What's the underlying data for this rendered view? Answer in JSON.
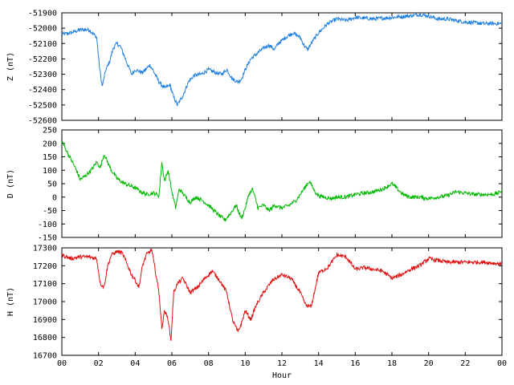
{
  "chart_data": [
    {
      "type": "line",
      "ylabel": "Z (nT)",
      "ylim": [
        -52600,
        -51900
      ],
      "yticks": [
        -51900,
        -52000,
        -52100,
        -52200,
        -52300,
        -52400,
        -52500,
        -52600
      ],
      "color": "#1f7fe0",
      "series": [
        {
          "x": [
            0,
            0.5,
            1,
            1.5,
            1.9,
            2.05,
            2.2,
            2.4,
            2.6,
            2.8,
            3.0,
            3.2,
            3.5,
            3.8,
            4.0,
            4.4,
            4.8,
            5.0,
            5.3,
            5.6,
            5.9,
            6.1,
            6.3,
            6.6,
            6.9,
            7.2,
            7.6,
            8.0,
            8.4,
            8.7,
            9.0,
            9.3,
            9.6,
            9.8,
            10.0,
            10.3,
            10.6,
            11.0,
            11.3,
            11.6,
            11.8,
            12.2,
            12.6,
            13.0,
            13.2,
            13.4,
            13.7,
            14.0,
            14.5,
            15.0,
            15.5,
            16.0,
            17.0,
            18.0,
            19.0,
            19.5,
            20.0,
            20.5,
            21.0,
            22.0,
            23.0,
            24.0
          ],
          "y": [
            -52040,
            -52030,
            -52010,
            -52010,
            -52060,
            -52250,
            -52380,
            -52270,
            -52220,
            -52130,
            -52100,
            -52120,
            -52210,
            -52300,
            -52270,
            -52290,
            -52240,
            -52280,
            -52350,
            -52390,
            -52370,
            -52450,
            -52500,
            -52440,
            -52350,
            -52310,
            -52300,
            -52270,
            -52290,
            -52300,
            -52270,
            -52330,
            -52350,
            -52330,
            -52270,
            -52200,
            -52170,
            -52130,
            -52110,
            -52140,
            -52100,
            -52060,
            -52030,
            -52060,
            -52110,
            -52140,
            -52080,
            -52030,
            -51970,
            -51940,
            -51950,
            -51930,
            -51940,
            -51930,
            -51920,
            -51910,
            -51920,
            -51940,
            -51940,
            -51960,
            -51970,
            -51970
          ]
        }
      ]
    },
    {
      "type": "line",
      "ylabel": "D (nT)",
      "ylim": [
        -150,
        250
      ],
      "yticks": [
        250,
        200,
        150,
        100,
        50,
        0,
        -50,
        -100,
        -150
      ],
      "color": "#00b800",
      "series": [
        {
          "x": [
            0,
            0.2,
            0.5,
            0.8,
            1.0,
            1.3,
            1.6,
            1.9,
            2.1,
            2.3,
            2.5,
            2.7,
            3.0,
            3.3,
            3.6,
            4.0,
            4.3,
            4.6,
            5.0,
            5.3,
            5.45,
            5.6,
            5.8,
            6.0,
            6.2,
            6.4,
            6.7,
            7.0,
            7.3,
            7.6,
            8.0,
            8.3,
            8.6,
            8.9,
            9.2,
            9.5,
            9.8,
            10.0,
            10.2,
            10.4,
            10.7,
            11.0,
            11.3,
            11.6,
            12.0,
            12.4,
            12.8,
            13.2,
            13.5,
            13.8,
            14.0,
            14.3,
            14.7,
            15.0,
            15.5,
            16.0,
            16.5,
            17.0,
            17.5,
            18.0,
            18.3,
            18.6,
            19.0,
            19.5,
            20.0,
            20.5,
            21.0,
            21.5,
            22.0,
            22.5,
            23.0,
            23.5,
            23.8,
            24.0
          ],
          "y": [
            210,
            180,
            140,
            100,
            65,
            80,
            100,
            130,
            110,
            160,
            130,
            100,
            70,
            55,
            45,
            35,
            20,
            10,
            15,
            5,
            130,
            60,
            100,
            20,
            -40,
            30,
            5,
            -20,
            0,
            -10,
            -30,
            -50,
            -70,
            -85,
            -60,
            -30,
            -80,
            -40,
            10,
            30,
            -40,
            -30,
            -50,
            -30,
            -40,
            -30,
            -10,
            30,
            60,
            20,
            5,
            0,
            -5,
            0,
            0,
            10,
            15,
            20,
            30,
            50,
            30,
            10,
            0,
            0,
            -5,
            0,
            5,
            20,
            15,
            10,
            10,
            10,
            15,
            25
          ]
        }
      ]
    },
    {
      "type": "line",
      "ylabel": "H (nT)",
      "ylim": [
        16700,
        17300
      ],
      "yticks": [
        17300,
        17200,
        17100,
        17000,
        16900,
        16800,
        16700
      ],
      "xlabel": "Hour",
      "xticks": [
        "00",
        "02",
        "04",
        "06",
        "08",
        "10",
        "12",
        "14",
        "16",
        "18",
        "20",
        "22",
        "00"
      ],
      "xlim": [
        0,
        24
      ],
      "color": "#e01010",
      "series": [
        {
          "x": [
            0,
            0.5,
            1.0,
            1.5,
            1.9,
            2.1,
            2.3,
            2.5,
            2.7,
            3.0,
            3.3,
            3.6,
            3.8,
            4.0,
            4.2,
            4.4,
            4.6,
            4.9,
            5.1,
            5.3,
            5.45,
            5.6,
            5.8,
            5.95,
            6.1,
            6.3,
            6.6,
            7.0,
            7.4,
            7.8,
            8.2,
            8.6,
            9.0,
            9.3,
            9.6,
            9.8,
            10.0,
            10.3,
            10.6,
            11.0,
            11.5,
            12.0,
            12.5,
            13.0,
            13.3,
            13.6,
            14.0,
            14.5,
            15.0,
            15.5,
            16.0,
            16.5,
            17.0,
            17.5,
            18.0,
            18.5,
            19.0,
            19.5,
            20.0,
            20.5,
            21.0,
            22.0,
            23.0,
            24.0
          ],
          "y": [
            17260,
            17240,
            17250,
            17250,
            17240,
            17100,
            17080,
            17200,
            17260,
            17280,
            17270,
            17200,
            17150,
            17120,
            17080,
            17200,
            17260,
            17290,
            17170,
            17050,
            16850,
            16950,
            16900,
            16780,
            17050,
            17100,
            17130,
            17050,
            17080,
            17130,
            17170,
            17120,
            17050,
            16900,
            16830,
            16880,
            16950,
            16900,
            16980,
            17050,
            17120,
            17150,
            17130,
            17050,
            16980,
            16970,
            17160,
            17190,
            17260,
            17250,
            17180,
            17190,
            17180,
            17170,
            17130,
            17150,
            17180,
            17200,
            17240,
            17230,
            17220,
            17220,
            17220,
            17210
          ]
        }
      ]
    }
  ]
}
